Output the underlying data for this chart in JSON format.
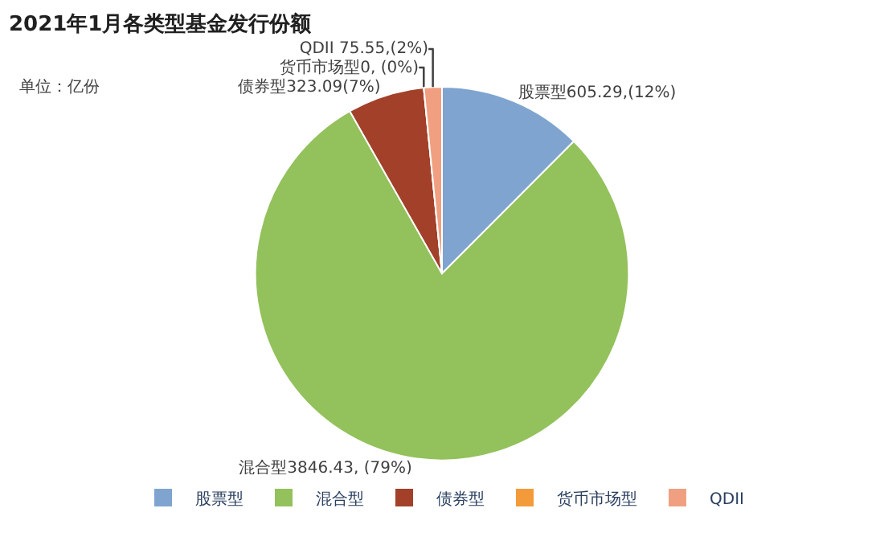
{
  "chart_data": {
    "type": "pie",
    "title": "2021年1月各类型基金发行份额",
    "annotations": [
      "单位：亿份"
    ],
    "categories": [
      "股票型",
      "混合型",
      "债券型",
      "货币市场型",
      "QDII"
    ],
    "values": [
      605.29,
      3846.43,
      323.09,
      0,
      75.55
    ],
    "value_labels": [
      "股票型605.29,(12%)",
      "混合型3846.43, (79%)",
      "债券型323.09(7%)",
      "货币市场型0, (0%)",
      "QDII 75.55,(2%)"
    ],
    "colors": [
      "#7ea4cf",
      "#93c15b",
      "#a2402a",
      "#f39a3a",
      "#f0a080"
    ],
    "legend": "bottom"
  }
}
